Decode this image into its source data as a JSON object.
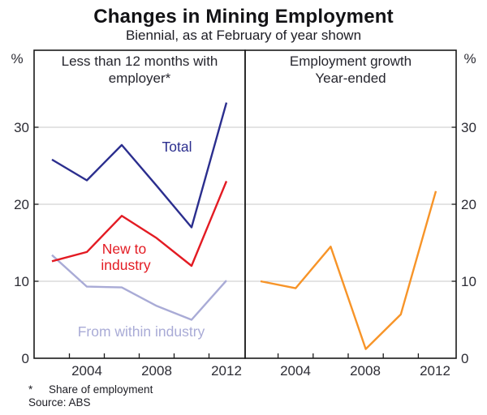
{
  "title": "Changes in Mining Employment",
  "subtitle": "Biennial, as at February of year shown",
  "axes": {
    "left_unit": "%",
    "right_unit": "%",
    "y_tick_labels": [
      "30",
      "20",
      "10",
      "0"
    ],
    "x_tick_labels": [
      "2004",
      "2008",
      "2012"
    ]
  },
  "annotations": {
    "panel_left_title_line1": "Less than 12 months with",
    "panel_left_title_line2": "employer*",
    "panel_right_title_line1": "Employment growth",
    "panel_right_title_line2": "Year-ended",
    "label_total": "Total",
    "label_new_line1": "New to",
    "label_new_line2": "industry",
    "label_within": "From within industry"
  },
  "footnotes": {
    "marker": "*",
    "note": "Share of employment",
    "source": "Source: ABS"
  },
  "colors": {
    "total": "#2b2e8e",
    "new_to_industry": "#e31b23",
    "from_within_industry": "#a9abd6",
    "employment_growth": "#f79428",
    "gridline": "#c8c8c8",
    "frame": "#1a1a1a"
  },
  "chart_data": [
    {
      "type": "line",
      "panel": "left",
      "title": "Less than 12 months with employer*",
      "categories": [
        2002,
        2004,
        2006,
        2008,
        2010,
        2012
      ],
      "series": [
        {
          "id": "total",
          "name": "Total",
          "color": "#2b2e8e",
          "values": [
            25.8,
            23.1,
            27.7,
            22.4,
            17.0,
            33.2
          ]
        },
        {
          "id": "new_to_industry",
          "name": "New to industry",
          "color": "#e31b23",
          "values": [
            12.6,
            13.8,
            18.5,
            15.6,
            12.0,
            23.0
          ]
        },
        {
          "id": "from_within_industry",
          "name": "From within industry",
          "color": "#a9abd6",
          "values": [
            13.4,
            9.3,
            9.2,
            6.8,
            5.0,
            10.1
          ]
        }
      ],
      "xlabel": "",
      "ylabel": "%",
      "ylim": [
        0,
        40
      ],
      "y_gridlines": [
        10,
        20,
        30
      ],
      "grid": true,
      "legend_position": "inline-labels"
    },
    {
      "type": "line",
      "panel": "right",
      "title": "Employment growth Year-ended",
      "categories": [
        2002,
        2004,
        2006,
        2008,
        2010,
        2012
      ],
      "series": [
        {
          "id": "employment_growth",
          "name": "Employment growth",
          "color": "#f79428",
          "values": [
            10.0,
            9.1,
            14.5,
            1.2,
            5.7,
            21.7
          ]
        }
      ],
      "xlabel": "",
      "ylabel": "%",
      "ylim": [
        0,
        40
      ],
      "y_gridlines": [
        10,
        20,
        30
      ],
      "grid": true,
      "legend_position": "none"
    }
  ]
}
